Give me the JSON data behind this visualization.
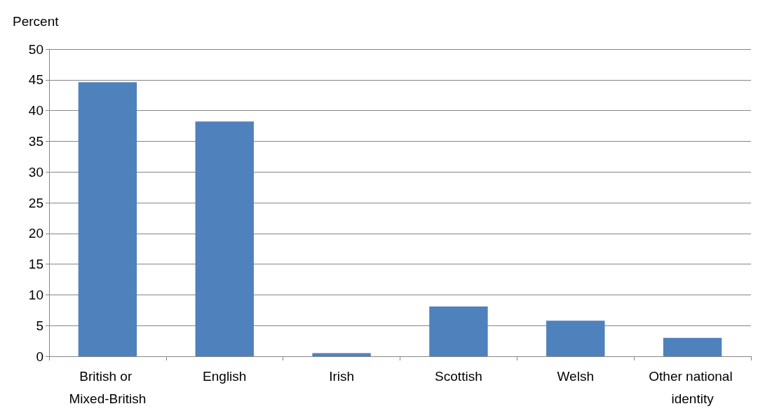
{
  "chart_data": {
    "type": "bar",
    "ylabel": "Percent",
    "categories": [
      "British or Mixed-British",
      "English",
      "Irish",
      "Scottish",
      "Welsh",
      "Other national identity"
    ],
    "values": [
      44.6,
      38.2,
      0.5,
      8.1,
      5.8,
      3.0
    ],
    "color": "#4f81bd",
    "ylim": [
      0,
      50
    ],
    "yticks": [
      0,
      5,
      10,
      15,
      20,
      25,
      30,
      35,
      40,
      45,
      50
    ],
    "grid": "y"
  }
}
